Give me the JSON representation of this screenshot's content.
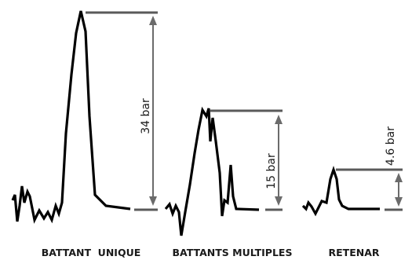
{
  "panels": [
    {
      "id": "battant-unique",
      "caption": "BATTANT  UNIQUE",
      "pressure": "34 bar"
    },
    {
      "id": "battants-multiples",
      "caption": "BATTANTS MULTIPLES",
      "pressure": "15 bar"
    },
    {
      "id": "retenar",
      "caption": "RETENAR",
      "pressure": "4.6 bar"
    }
  ],
  "colors": {
    "trace": "#000000",
    "reference": "#5a5a5a",
    "measure": "#6b6b6b",
    "text": "#1a1a1a"
  }
}
